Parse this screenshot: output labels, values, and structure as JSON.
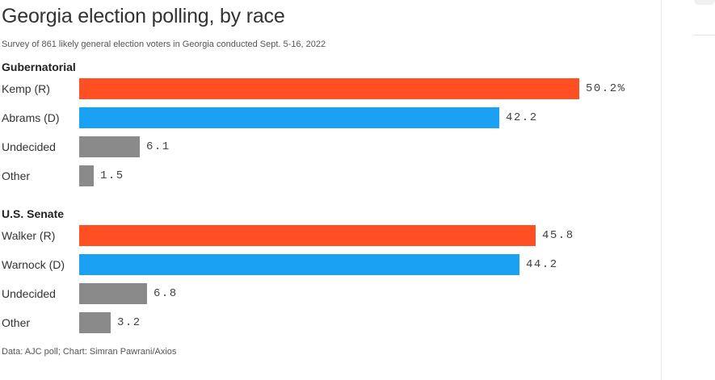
{
  "title": "Georgia election polling, by race",
  "subtitle": "Survey of 861 likely general election voters in Georgia conducted Sept. 5-16, 2022",
  "footer": "Data: AJC poll; Chart: Simran Pawrani/Axios",
  "colors": {
    "republican": "#ff4f23",
    "democrat": "#1ba1f4",
    "other": "#8a8a8a"
  },
  "chart_data": {
    "type": "bar",
    "orientation": "horizontal",
    "unit": "%",
    "xlim": [
      0,
      60
    ],
    "grid": false,
    "legend": "none",
    "groups": [
      {
        "name": "Gubernatorial",
        "categories": [
          "Kemp (R)",
          "Abrams (D)",
          "Undecided",
          "Other"
        ],
        "values": [
          50.2,
          42.2,
          6.1,
          1.5
        ],
        "value_labels": [
          "50.2%",
          "42.2",
          "6.1",
          "1.5"
        ],
        "colors": [
          "#ff4f23",
          "#1ba1f4",
          "#8a8a8a",
          "#8a8a8a"
        ]
      },
      {
        "name": "U.S. Senate",
        "categories": [
          "Walker (R)",
          "Warnock (D)",
          "Undecided",
          "Other"
        ],
        "values": [
          45.8,
          44.2,
          6.8,
          3.2
        ],
        "value_labels": [
          "45.8",
          "44.2",
          "6.8",
          "3.2"
        ],
        "colors": [
          "#ff4f23",
          "#1ba1f4",
          "#8a8a8a",
          "#8a8a8a"
        ]
      }
    ]
  }
}
